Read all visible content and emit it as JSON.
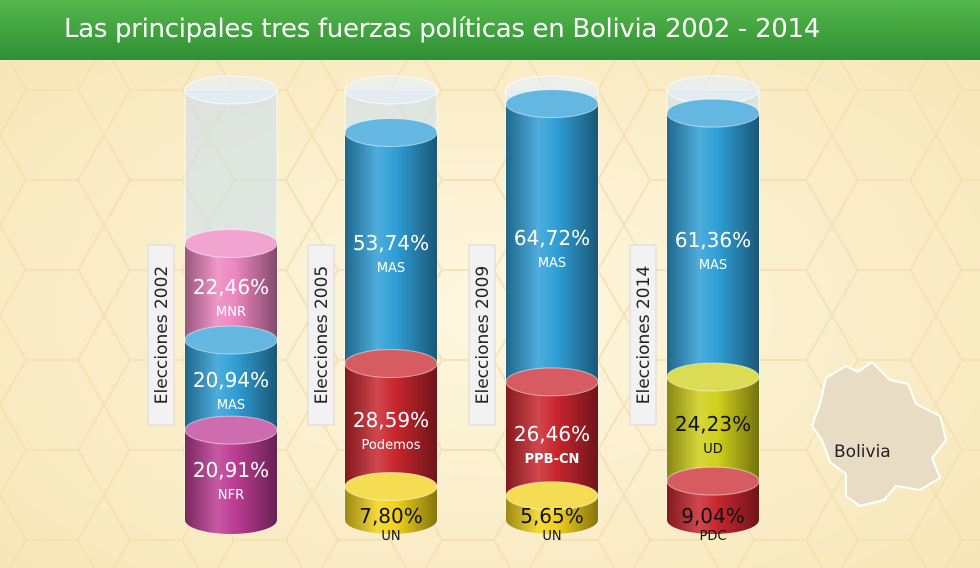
{
  "title": "Las principales tres fuerzas políticas en Bolivia 2002 - 2014",
  "map": {
    "label": "Bolivia"
  },
  "colors": {
    "MNR": "#ec86c0",
    "MAS": "#2f9fd6",
    "NFR": "#bc3c94",
    "Podemos": "#c8262d",
    "UN": "#f2d21a",
    "PPB-CN": "#c8262d",
    "UD": "#cfd01a",
    "PDC": "#c8262d"
  },
  "chart_data": {
    "type": "bar",
    "title": "Las principales tres fuerzas políticas en Bolivia 2002 - 2014",
    "categories": [
      "Elecciones 2002",
      "Elecciones 2005",
      "Elecciones 2009",
      "Elecciones 2014"
    ],
    "columns": [
      {
        "label": "Elecciones 2002",
        "segments": [
          {
            "party": "NFR",
            "value": 20.91,
            "text": "20,91%"
          },
          {
            "party": "MAS",
            "value": 20.94,
            "text": "20,94%"
          },
          {
            "party": "MNR",
            "value": 22.46,
            "text": "22,46%"
          }
        ]
      },
      {
        "label": "Elecciones 2005",
        "segments": [
          {
            "party": "UN",
            "value": 7.8,
            "text": "7,80%"
          },
          {
            "party": "Podemos",
            "value": 28.59,
            "text": "28,59%"
          },
          {
            "party": "MAS",
            "value": 53.74,
            "text": "53,74%"
          }
        ]
      },
      {
        "label": "Elecciones 2009",
        "segments": [
          {
            "party": "UN",
            "value": 5.65,
            "text": "5,65%"
          },
          {
            "party": "PPB-CN",
            "value": 26.46,
            "text": "26,46%"
          },
          {
            "party": "MAS",
            "value": 64.72,
            "text": "64,72%"
          }
        ]
      },
      {
        "label": "Elecciones 2014",
        "segments": [
          {
            "party": "PDC",
            "value": 9.04,
            "text": "9,04%"
          },
          {
            "party": "UD",
            "value": 24.23,
            "text": "24,23%"
          },
          {
            "party": "MAS",
            "value": 61.36,
            "text": "61,36%"
          }
        ]
      }
    ],
    "ylim": [
      0,
      100
    ]
  }
}
